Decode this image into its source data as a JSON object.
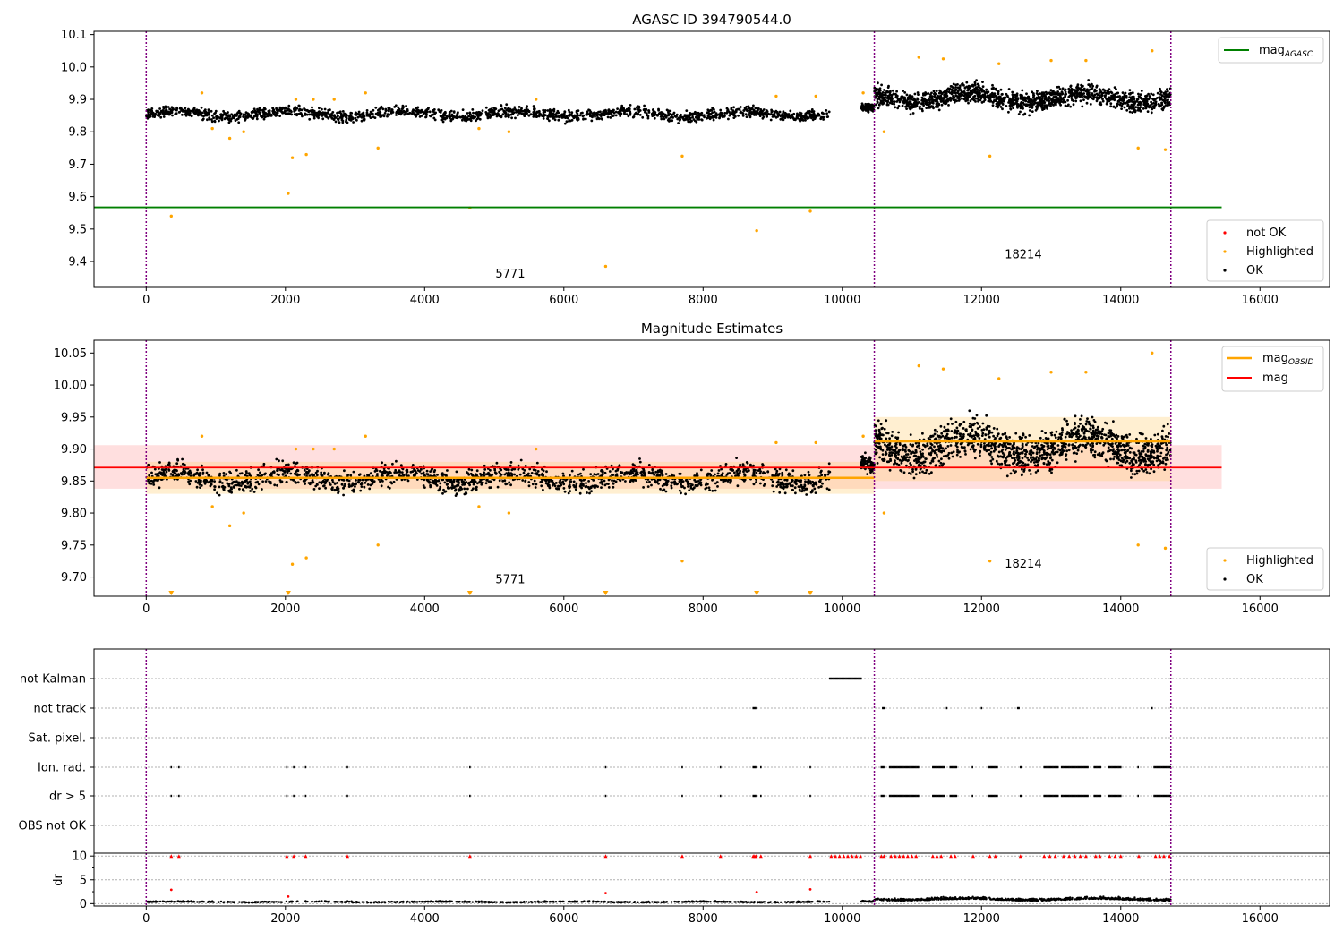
{
  "chart_data": [
    {
      "type": "scatter",
      "title": "AGASC ID 394790544.0",
      "xlim": [
        -750,
        17000
      ],
      "ylim": [
        9.32,
        10.11
      ],
      "xticks": [
        0,
        2000,
        4000,
        6000,
        8000,
        10000,
        12000,
        14000,
        16000
      ],
      "yticks": [
        9.4,
        9.5,
        9.6,
        9.7,
        9.8,
        9.9,
        10.0,
        10.1
      ],
      "ytick_format": 1,
      "vlines": [
        0,
        10460,
        14720
      ],
      "hline": {
        "name": "mag_AGASC",
        "y": 9.567,
        "x": [
          -750,
          15450
        ],
        "color": "#008000"
      },
      "obsid_labels": [
        {
          "text": "5771",
          "x": 5230,
          "y": 9.35
        },
        {
          "text": "18214",
          "x": 12600,
          "y": 9.41
        }
      ],
      "legend_upper": [
        {
          "label": "mag",
          "sub": "AGASC",
          "color": "#008000"
        }
      ],
      "legend_lower": [
        {
          "label": "not OK",
          "color": "#ff0000"
        },
        {
          "label": "Highlighted",
          "color": "#ffa500"
        },
        {
          "label": "OK",
          "color": "#000000"
        }
      ],
      "series": [
        {
          "name": "OK",
          "color": "#000000",
          "segments": [
            {
              "x": [
                0,
                9820
              ],
              "center": 9.855,
              "spread": 0.025,
              "n": 1700
            },
            {
              "x": [
                10270,
                10460
              ],
              "center": 9.87,
              "spread": 0.02,
              "n": 80
            },
            {
              "x": [
                10460,
                14720
              ],
              "center": 9.905,
              "spread": 0.045,
              "n": 1400
            }
          ]
        },
        {
          "name": "Highlighted",
          "color": "#ffa500",
          "points": [
            [
              360,
              9.54
            ],
            [
              800,
              9.92
            ],
            [
              950,
              9.81
            ],
            [
              1200,
              9.78
            ],
            [
              1400,
              9.8
            ],
            [
              2040,
              9.61
            ],
            [
              2100,
              9.72
            ],
            [
              2150,
              9.9
            ],
            [
              2300,
              9.73
            ],
            [
              2400,
              9.9
            ],
            [
              2700,
              9.9
            ],
            [
              3150,
              9.92
            ],
            [
              3330,
              9.75
            ],
            [
              4650,
              9.565
            ],
            [
              4780,
              9.81
            ],
            [
              5210,
              9.8
            ],
            [
              5600,
              9.9
            ],
            [
              6600,
              9.385
            ],
            [
              7700,
              9.725
            ],
            [
              8770,
              9.495
            ],
            [
              9050,
              9.91
            ],
            [
              9540,
              9.555
            ],
            [
              9620,
              9.91
            ],
            [
              10300,
              9.92
            ],
            [
              10600,
              9.8
            ],
            [
              11100,
              10.03
            ],
            [
              11450,
              10.025
            ],
            [
              12120,
              9.725
            ],
            [
              12250,
              10.01
            ],
            [
              13000,
              10.02
            ],
            [
              13500,
              10.02
            ],
            [
              14250,
              9.75
            ],
            [
              14450,
              10.05
            ],
            [
              14640,
              9.745
            ]
          ]
        },
        {
          "name": "not OK",
          "color": "#ff0000",
          "points": []
        }
      ]
    },
    {
      "type": "scatter",
      "title": "Magnitude Estimates",
      "xlim": [
        -750,
        17000
      ],
      "ylim": [
        9.67,
        10.07
      ],
      "xticks": [
        0,
        2000,
        4000,
        6000,
        8000,
        10000,
        12000,
        14000,
        16000
      ],
      "yticks": [
        9.7,
        9.75,
        9.8,
        9.85,
        9.9,
        9.95,
        10.0,
        10.05
      ],
      "ytick_format": 2,
      "vlines": [
        0,
        10460,
        14720
      ],
      "mag_band": {
        "y": [
          9.838,
          9.906
        ],
        "x": [
          -750,
          15450
        ],
        "color": "#ffc0c0"
      },
      "mag_line": {
        "name": "mag",
        "y": 9.871,
        "x": [
          -750,
          15450
        ],
        "color": "#ff0000"
      },
      "obsid_mags": [
        {
          "x": [
            0,
            10460
          ],
          "y": 9.855,
          "band": [
            9.83,
            9.88
          ]
        },
        {
          "x": [
            10460,
            14720
          ],
          "y": 9.912,
          "band": [
            9.85,
            9.95
          ]
        }
      ],
      "obsid_labels": [
        {
          "text": "5771",
          "x": 5230,
          "y": 9.69
        },
        {
          "text": "18214",
          "x": 12600,
          "y": 9.715
        }
      ],
      "offscale_markers": [
        360,
        2040,
        4650,
        6600,
        8770,
        9540
      ],
      "legend_upper": [
        {
          "label": "mag",
          "sub": "OBSID",
          "color": "#ffa500"
        },
        {
          "label": "mag",
          "sub": "",
          "color": "#ff0000"
        }
      ],
      "legend_lower": [
        {
          "label": "Highlighted",
          "color": "#ffa500"
        },
        {
          "label": "OK",
          "color": "#000000"
        }
      ]
    },
    {
      "type": "scatter",
      "title": "",
      "categories": [
        "not Kalman",
        "not track",
        "Sat. pixel.",
        "Ion. rad.",
        "dr > 5",
        "OBS not OK"
      ],
      "flags": {
        "not Kalman": [
          [
            9820,
            10280
          ]
        ],
        "not track": [
          [
            8720,
            8760
          ],
          [
            10580,
            10600
          ],
          [
            11500,
            11510
          ],
          [
            12000,
            12010
          ],
          [
            12520,
            12540
          ],
          [
            14450,
            14460
          ]
        ],
        "Sat. pixel.": [],
        "Ion. rad.": [
          [
            360,
            360
          ],
          [
            470,
            470
          ],
          [
            2020,
            2020
          ],
          [
            2120,
            2120
          ],
          [
            2290,
            2290
          ],
          [
            2890,
            2890
          ],
          [
            4650,
            4650
          ],
          [
            6600,
            6600
          ],
          [
            7700,
            7700
          ],
          [
            8250,
            8250
          ],
          [
            8720,
            8760
          ],
          [
            8830,
            8830
          ],
          [
            9540,
            9540
          ],
          [
            10560,
            10600
          ],
          [
            10680,
            11100
          ],
          [
            11300,
            11470
          ],
          [
            11550,
            11650
          ],
          [
            11870,
            11880
          ],
          [
            12100,
            12230
          ],
          [
            12560,
            12580
          ],
          [
            12900,
            13100
          ],
          [
            13150,
            13530
          ],
          [
            13620,
            13720
          ],
          [
            13820,
            14000
          ],
          [
            14250,
            14260
          ],
          [
            14480,
            14720
          ]
        ],
        "dr > 5": [
          [
            360,
            360
          ],
          [
            470,
            470
          ],
          [
            2020,
            2020
          ],
          [
            2120,
            2120
          ],
          [
            2290,
            2290
          ],
          [
            2890,
            2890
          ],
          [
            4650,
            4650
          ],
          [
            6600,
            6600
          ],
          [
            7700,
            7700
          ],
          [
            8250,
            8250
          ],
          [
            8720,
            8760
          ],
          [
            8830,
            8830
          ],
          [
            9540,
            9540
          ],
          [
            10560,
            10600
          ],
          [
            10680,
            11100
          ],
          [
            11300,
            11470
          ],
          [
            11550,
            11650
          ],
          [
            11870,
            11880
          ],
          [
            12100,
            12230
          ],
          [
            12560,
            12580
          ],
          [
            12900,
            13100
          ],
          [
            13150,
            13530
          ],
          [
            13620,
            13720
          ],
          [
            13820,
            14000
          ],
          [
            14250,
            14260
          ],
          [
            14480,
            14720
          ]
        ],
        "OBS not OK": []
      },
      "xlim": [
        -750,
        17000
      ],
      "vlines": [
        0,
        10460,
        14720
      ]
    },
    {
      "type": "scatter",
      "title": "",
      "ylabel": "dr",
      "xlim": [
        -750,
        17000
      ],
      "ylim": [
        -0.5,
        10.6
      ],
      "xticks": [
        0,
        2000,
        4000,
        6000,
        8000,
        10000,
        12000,
        14000,
        16000
      ],
      "yticks": [
        0,
        5,
        10
      ],
      "vlines": [
        0,
        10460,
        14720
      ],
      "dr_segments": [
        {
          "x": [
            0,
            9820
          ],
          "center": 0.3,
          "spread": 0.25,
          "n": 700
        },
        {
          "x": [
            10270,
            10460
          ],
          "center": 0.4,
          "spread": 0.3,
          "n": 40
        },
        {
          "x": [
            10460,
            14720
          ],
          "center": 0.8,
          "spread": 0.6,
          "n": 700
        }
      ],
      "dr_outliers": [
        [
          360,
          2.9
        ],
        [
          2040,
          1.5
        ],
        [
          6600,
          2.2
        ],
        [
          8770,
          2.4
        ],
        [
          9540,
          3.0
        ]
      ],
      "clipped_x": [
        360,
        470,
        2020,
        2120,
        2290,
        2890,
        4650,
        6600,
        7700,
        8250,
        8720,
        8740,
        8760,
        8830,
        9540,
        9840,
        9900,
        9960,
        10020,
        10080,
        10140,
        10200,
        10260,
        10560,
        10600,
        10700,
        10760,
        10820,
        10880,
        10940,
        11000,
        11060,
        11300,
        11360,
        11420,
        11560,
        11620,
        11880,
        12120,
        12200,
        12560,
        12900,
        12980,
        13060,
        13180,
        13260,
        13340,
        13420,
        13500,
        13640,
        13700,
        13840,
        13920,
        14000,
        14260,
        14500,
        14560,
        14620,
        14700
      ]
    }
  ]
}
